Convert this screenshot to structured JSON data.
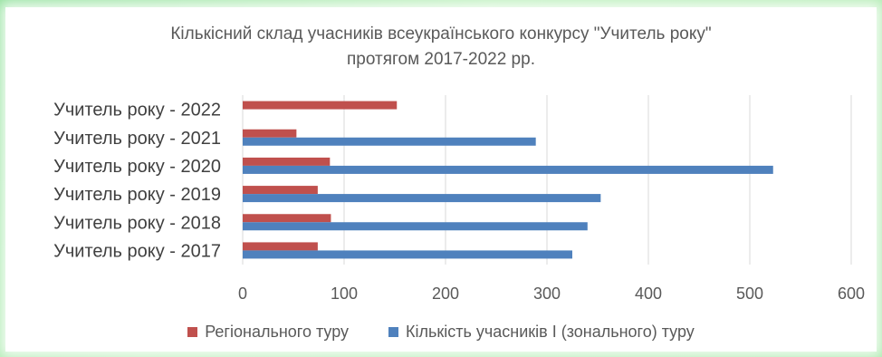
{
  "chart_data": {
    "type": "bar",
    "orientation": "horizontal",
    "title_lines": [
      "Кількісний склад учасників всеукраїнського конкурсу \"Учитель року\"",
      "протягом 2017-2022 рр."
    ],
    "categories": [
      "Учитель року - 2017",
      "Учитель року - 2018",
      "Учитель року - 2019",
      "Учитель року - 2020",
      "Учитель року - 2021",
      "Учитель року - 2022"
    ],
    "series": [
      {
        "name": "Регіонального туру",
        "color": "#c0504d",
        "values": [
          74,
          87,
          74,
          86,
          53,
          152
        ]
      },
      {
        "name": "Кількість учасників І (зонального) туру",
        "color": "#4f81bd",
        "values": [
          325,
          340,
          353,
          523,
          289,
          null
        ]
      }
    ],
    "xlim": [
      0,
      600
    ],
    "xticks": [
      0,
      100,
      200,
      300,
      400,
      500,
      600
    ],
    "grid": true,
    "legend_position": "bottom"
  }
}
